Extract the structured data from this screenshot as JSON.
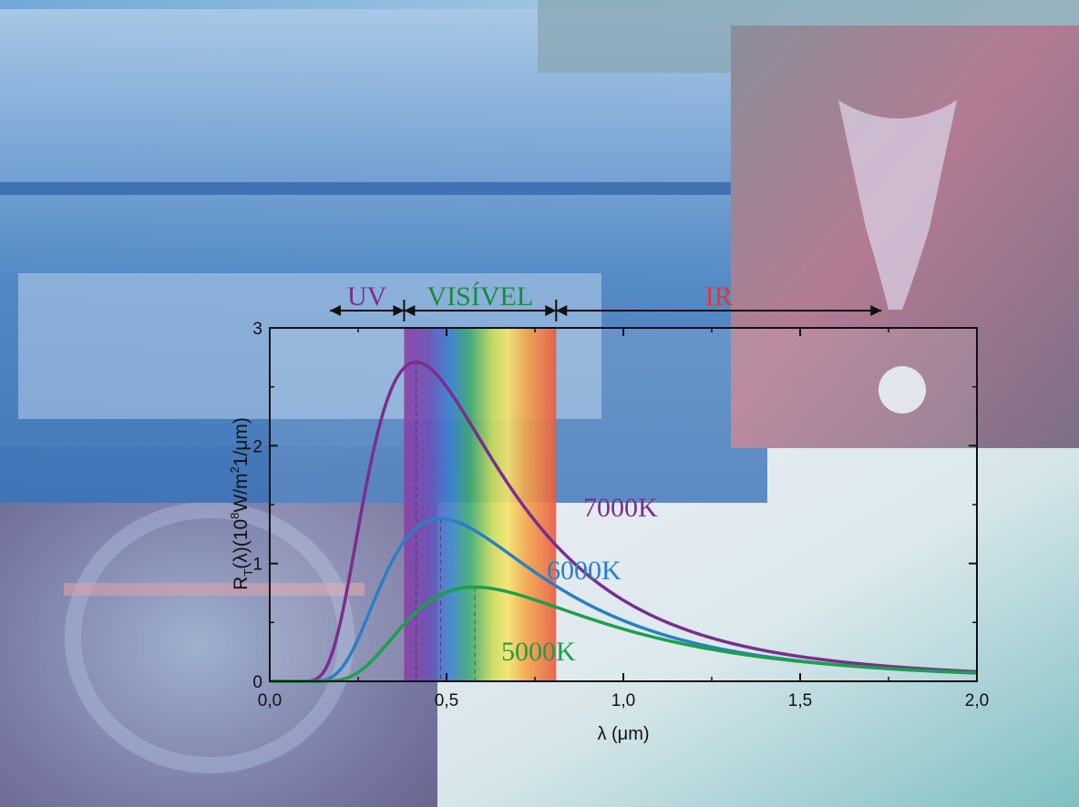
{
  "chart_data": {
    "type": "line",
    "xlabel": "λ (μm)",
    "ylabel_parts": {
      "main": "R",
      "sub": "T",
      "mid": "(λ)(10",
      "sup1": "8",
      "mid2": "W/m",
      "sup2": "2",
      "end": "1/μm)"
    },
    "xlim": [
      0,
      2.0
    ],
    "ylim": [
      0,
      3
    ],
    "x_ticks": [
      {
        "value": 0.0,
        "label": "0,0"
      },
      {
        "value": 0.5,
        "label": "0,5"
      },
      {
        "value": 1.0,
        "label": "1,0"
      },
      {
        "value": 1.5,
        "label": "1,5"
      },
      {
        "value": 2.0,
        "label": "2,0"
      }
    ],
    "y_ticks": [
      {
        "value": 0,
        "label": "0"
      },
      {
        "value": 1,
        "label": "1"
      },
      {
        "value": 2,
        "label": "2"
      },
      {
        "value": 3,
        "label": "3"
      }
    ],
    "series": [
      {
        "name": "7000K",
        "temperature": 7000,
        "color": "#7a2e8e",
        "peak_x": 0.414,
        "peak_y": 2.71
      },
      {
        "name": "6000K",
        "temperature": 6000,
        "color": "#2a7fc6",
        "peak_x": 0.483,
        "peak_y": 1.38
      },
      {
        "name": "5000K",
        "temperature": 5000,
        "color": "#1da04a",
        "peak_x": 0.58,
        "peak_y": 0.8
      }
    ],
    "regions": [
      {
        "label": "UV",
        "from": 0.17,
        "to": 0.38,
        "color": "#7a2e8e"
      },
      {
        "label": "VISÍVEL",
        "from": 0.38,
        "to": 0.81,
        "color": "#1a8a3e"
      },
      {
        "label": "IR",
        "from": 0.81,
        "to": 1.73,
        "color": "#e8352a"
      }
    ],
    "visible_band": {
      "from": 0.38,
      "to": 0.81
    },
    "grid": false,
    "legend": "inline labels on curves"
  }
}
